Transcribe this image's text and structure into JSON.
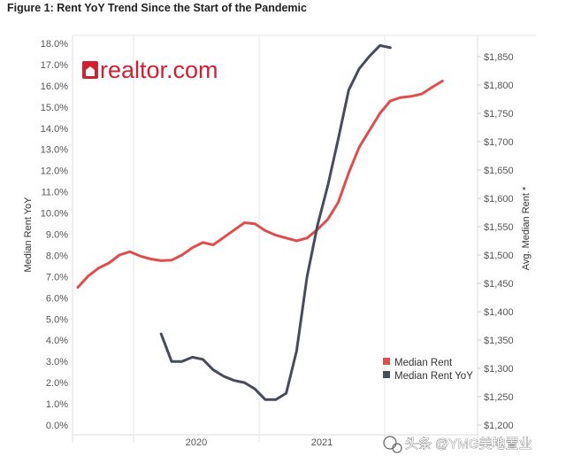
{
  "figure_title": "Figure 1: Rent YoY Trend Since the Start of the Pandemic",
  "brand_logo": "realtor.com",
  "watermark": "头条 @YMG美地置业",
  "chart_data": {
    "type": "line",
    "x_ticks": [
      "2020",
      "2021"
    ],
    "left_axis": {
      "label": "Median Rent YoY",
      "ticks": [
        "18.0%",
        "17.0%",
        "16.0%",
        "15.0%",
        "14.0%",
        "13.0%",
        "12.0%",
        "11.0%",
        "10.0%",
        "9.0%",
        "8.0%",
        "7.0%",
        "6.0%",
        "5.0%",
        "4.0%",
        "3.0%",
        "2.0%",
        "1.0%",
        "0.0%"
      ],
      "range": [
        0,
        18
      ]
    },
    "right_axis": {
      "label": "Avg. Median Rent *",
      "ticks": [
        "$1,850",
        "$1,800",
        "$1,750",
        "$1,700",
        "$1,650",
        "$1,600",
        "$1,550",
        "$1,500",
        "$1,450",
        "$1,400",
        "$1,350",
        "$1,300",
        "$1,250",
        "$1,200"
      ],
      "range": [
        1190,
        1865
      ]
    },
    "grid": "vertical",
    "legend_position": "bottom-right",
    "series": [
      {
        "name": "Median Rent",
        "axis": "right",
        "color": "#e04d4d",
        "points": [
          [
            "2019-07",
            1443
          ],
          [
            "2019-08",
            1463
          ],
          [
            "2019-09",
            1477
          ],
          [
            "2019-10",
            1486
          ],
          [
            "2019-11",
            1500
          ],
          [
            "2019-12",
            1506
          ],
          [
            "2020-01",
            1498
          ],
          [
            "2020-02",
            1493
          ],
          [
            "2020-03",
            1490
          ],
          [
            "2020-04",
            1491
          ],
          [
            "2020-05",
            1500
          ],
          [
            "2020-06",
            1513
          ],
          [
            "2020-07",
            1522
          ],
          [
            "2020-08",
            1518
          ],
          [
            "2020-09",
            1531
          ],
          [
            "2020-10",
            1544
          ],
          [
            "2020-11",
            1557
          ],
          [
            "2020-12",
            1555
          ],
          [
            "2021-01",
            1543
          ],
          [
            "2021-02",
            1535
          ],
          [
            "2021-03",
            1530
          ],
          [
            "2021-04",
            1525
          ],
          [
            "2021-05",
            1530
          ],
          [
            "2021-06",
            1545
          ],
          [
            "2021-07",
            1563
          ],
          [
            "2021-08",
            1593
          ],
          [
            "2021-09",
            1645
          ],
          [
            "2021-10",
            1690
          ],
          [
            "2021-11",
            1720
          ],
          [
            "2021-12",
            1750
          ],
          [
            "2022-01",
            1772
          ],
          [
            "2022-02",
            1778
          ],
          [
            "2022-03",
            1780
          ],
          [
            "2022-04",
            1784
          ],
          [
            "2022-05",
            1796
          ],
          [
            "2022-06",
            1807
          ]
        ]
      },
      {
        "name": "Median Rent YoY",
        "axis": "left",
        "color": "#464c5a",
        "points": [
          [
            "2020-03",
            4.3
          ],
          [
            "2020-04",
            3.0
          ],
          [
            "2020-05",
            3.0
          ],
          [
            "2020-06",
            3.2
          ],
          [
            "2020-07",
            3.1
          ],
          [
            "2020-08",
            2.6
          ],
          [
            "2020-09",
            2.3
          ],
          [
            "2020-10",
            2.1
          ],
          [
            "2020-11",
            2.0
          ],
          [
            "2020-12",
            1.7
          ],
          [
            "2021-01",
            1.2
          ],
          [
            "2021-02",
            1.2
          ],
          [
            "2021-03",
            1.5
          ],
          [
            "2021-04",
            3.5
          ],
          [
            "2021-05",
            7.0
          ],
          [
            "2021-06",
            9.4
          ],
          [
            "2021-07",
            11.3
          ],
          [
            "2021-08",
            13.5
          ],
          [
            "2021-09",
            15.8
          ],
          [
            "2021-10",
            16.8
          ],
          [
            "2021-11",
            17.4
          ],
          [
            "2021-12",
            17.9
          ],
          [
            "2022-01",
            17.8
          ]
        ]
      }
    ]
  }
}
